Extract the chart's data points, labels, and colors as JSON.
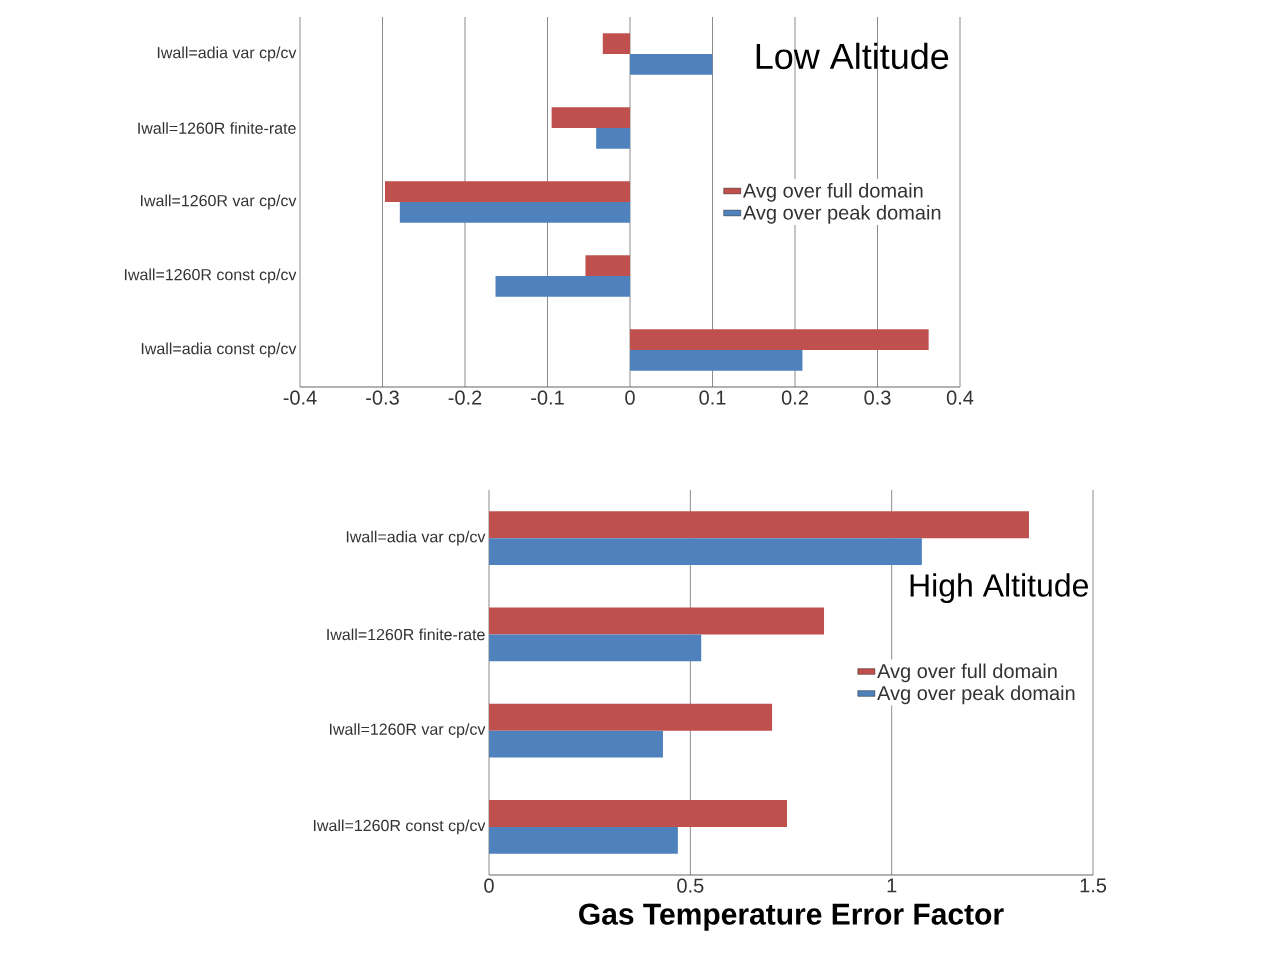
{
  "chart_data": [
    {
      "type": "bar",
      "orientation": "horizontal",
      "title": "Low Altitude",
      "categories": [
        "Iwall=adia var cp/cv",
        "Iwall=1260R finite-rate",
        "Iwall=1260R var cp/cv",
        "Iwall=1260R const cp/cv",
        "Iwall=adia const cp/cv"
      ],
      "series": [
        {
          "name": "Avg over full domain",
          "color": "#c0504d",
          "values": [
            -0.033,
            -0.095,
            -0.297,
            -0.054,
            0.362
          ]
        },
        {
          "name": "Avg over peak domain",
          "color": "#4f81bd",
          "values": [
            0.1,
            -0.041,
            -0.279,
            -0.163,
            0.209
          ]
        }
      ],
      "xlim": [
        -0.4,
        0.4
      ],
      "xticks": [
        -0.4,
        -0.3,
        -0.2,
        -0.1,
        0,
        0.1,
        0.2,
        0.3,
        0.4
      ],
      "grid": "x",
      "legend": "right"
    },
    {
      "type": "bar",
      "orientation": "horizontal",
      "title": "High Altitude",
      "xlabel": "Gas Temperature Error Factor",
      "categories": [
        "Iwall=adia var cp/cv",
        "Iwall=1260R finite-rate",
        "Iwall=1260R var cp/cv",
        "Iwall=1260R const cp/cv"
      ],
      "series": [
        {
          "name": "Avg over full domain",
          "color": "#c0504d",
          "values": [
            1.341,
            0.832,
            0.703,
            0.74
          ]
        },
        {
          "name": "Avg over peak domain",
          "color": "#4f81bd",
          "values": [
            1.075,
            0.527,
            0.432,
            0.469
          ]
        }
      ],
      "xlim": [
        0,
        1.5
      ],
      "xticks": [
        0,
        0.5,
        1,
        1.5
      ],
      "grid": "x",
      "legend": "right"
    }
  ]
}
